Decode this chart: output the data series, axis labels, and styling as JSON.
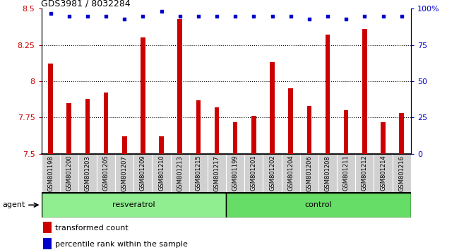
{
  "title": "GDS3981 / 8032284",
  "samples": [
    "GSM801198",
    "GSM801200",
    "GSM801203",
    "GSM801205",
    "GSM801207",
    "GSM801209",
    "GSM801210",
    "GSM801213",
    "GSM801215",
    "GSM801217",
    "GSM801199",
    "GSM801201",
    "GSM801202",
    "GSM801204",
    "GSM801206",
    "GSM801208",
    "GSM801211",
    "GSM801212",
    "GSM801214",
    "GSM801216"
  ],
  "bar_values": [
    8.12,
    7.85,
    7.88,
    7.92,
    7.62,
    8.3,
    7.62,
    8.43,
    7.87,
    7.82,
    7.72,
    7.76,
    8.13,
    7.95,
    7.83,
    8.32,
    7.8,
    8.36,
    7.72,
    7.78
  ],
  "percentile_values": [
    97,
    95,
    95,
    95,
    93,
    95,
    98,
    95,
    95,
    95,
    95,
    95,
    95,
    95,
    93,
    95,
    93,
    95,
    95,
    95
  ],
  "bar_color": "#cc0000",
  "percentile_color": "#0000cc",
  "ylim_left": [
    7.5,
    8.5
  ],
  "ylim_right": [
    0,
    100
  ],
  "yticks_left": [
    7.5,
    7.75,
    8.0,
    8.25,
    8.5
  ],
  "yticks_right": [
    0,
    25,
    50,
    75,
    100
  ],
  "ytick_labels_left": [
    "7.5",
    "7.75",
    "8",
    "8.25",
    "8.5"
  ],
  "ytick_labels_right": [
    "0",
    "25",
    "50",
    "75",
    "100%"
  ],
  "grid_lines": [
    7.75,
    8.0,
    8.25
  ],
  "resveratrol_samples": 10,
  "control_samples": 10,
  "group_label_resveratrol": "resveratrol",
  "group_label_control": "control",
  "agent_label": "agent",
  "legend_bar_label": "transformed count",
  "legend_pct_label": "percentile rank within the sample",
  "bg_color_plot": "#ffffff",
  "bg_color_xticklabels": "#d0d0d0",
  "bg_color_resveratrol": "#90ee90",
  "bg_color_control": "#66dd66",
  "bar_width": 0.25
}
